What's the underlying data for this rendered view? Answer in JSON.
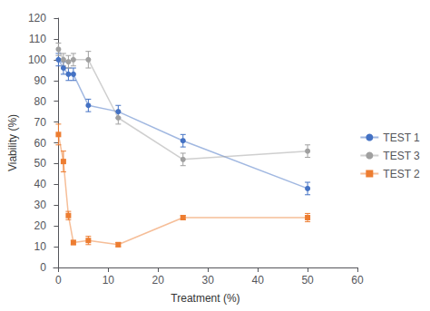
{
  "chart_data": {
    "type": "line",
    "xlabel": "Treatment (%)",
    "ylabel": "Viability (%)",
    "x": [
      0,
      1,
      2,
      3,
      6,
      12,
      25,
      50
    ],
    "series": [
      {
        "name": "TEST 1",
        "color": "#4472C4",
        "marker": "circle",
        "values": [
          100,
          96,
          93,
          93,
          78,
          75,
          61,
          38
        ],
        "errors": [
          3,
          3,
          3,
          3,
          3,
          3,
          3,
          3
        ]
      },
      {
        "name": "TEST 3",
        "color": "#A0A0A0",
        "marker": "circle",
        "values": [
          105,
          100,
          99,
          100,
          100,
          72,
          52,
          56
        ],
        "errors": [
          3,
          3,
          3,
          3,
          4,
          3,
          3,
          3
        ]
      },
      {
        "name": "TEST 2",
        "color": "#ED7D31",
        "marker": "square",
        "values": [
          64,
          51,
          25,
          12,
          13,
          11,
          24,
          24
        ],
        "errors": [
          5,
          5,
          2,
          1,
          2,
          1,
          1,
          2
        ]
      }
    ],
    "xlim": [
      -1,
      60
    ],
    "ylim": [
      0,
      120
    ],
    "xticks": [
      0,
      10,
      20,
      30,
      40,
      50,
      60
    ],
    "yticks": [
      0,
      10,
      20,
      30,
      40,
      50,
      60,
      70,
      80,
      90,
      100,
      110,
      120
    ],
    "grid": false,
    "legend": "right"
  }
}
